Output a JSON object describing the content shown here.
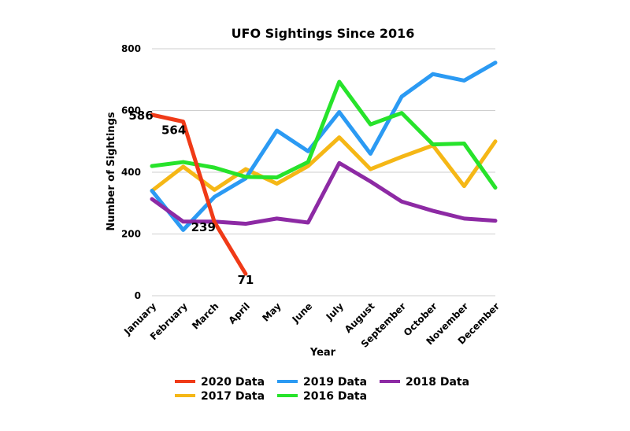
{
  "chart_data": {
    "type": "line",
    "title": "UFO Sightings Since 2016",
    "xlabel": "Year",
    "ylabel": "Number of Sightings",
    "ylim": [
      0,
      800
    ],
    "yticks": [
      0,
      200,
      400,
      600,
      800
    ],
    "grid": "horizontal",
    "legend_position": "bottom",
    "categories": [
      "January",
      "February",
      "March",
      "April",
      "May",
      "June",
      "July",
      "August",
      "September",
      "October",
      "November",
      "December"
    ],
    "series": [
      {
        "name": "2020 Data",
        "color": "#f03a17",
        "values": [
          586,
          564,
          239,
          71,
          null,
          null,
          null,
          null,
          null,
          null,
          null,
          null
        ],
        "labels": [
          "586",
          "564",
          "239",
          "71"
        ]
      },
      {
        "name": "2017 Data",
        "color": "#f5b716",
        "values": [
          340,
          418,
          343,
          410,
          363,
          420,
          513,
          410,
          450,
          487,
          355,
          500
        ]
      },
      {
        "name": "2019 Data",
        "color": "#2b9af3",
        "values": [
          340,
          213,
          320,
          380,
          535,
          468,
          595,
          460,
          645,
          718,
          697,
          755
        ]
      },
      {
        "name": "2016 Data",
        "color": "#27e32b",
        "values": [
          420,
          433,
          415,
          385,
          383,
          433,
          693,
          555,
          592,
          490,
          493,
          350
        ]
      },
      {
        "name": "2018 Data",
        "color": "#8d2aa4",
        "values": [
          313,
          240,
          240,
          233,
          250,
          237,
          430,
          370,
          305,
          275,
          250,
          243
        ]
      }
    ]
  }
}
